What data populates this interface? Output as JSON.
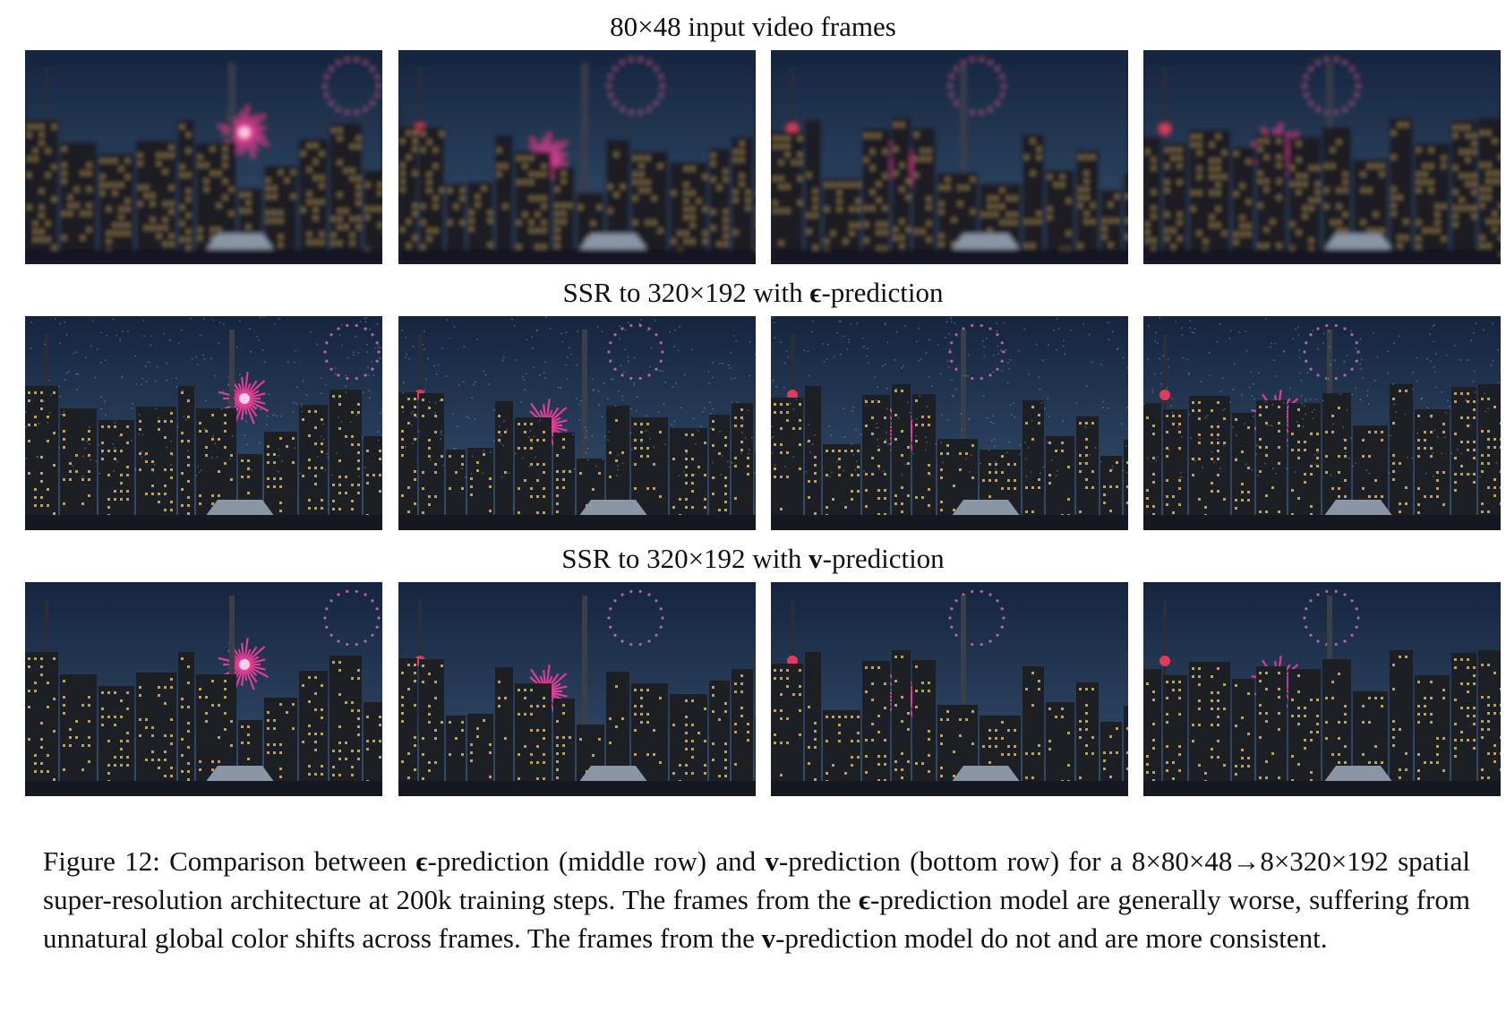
{
  "rows": [
    {
      "title_pre": "80×48 input video frames",
      "symbol": "",
      "title_post": "",
      "quality": "blurry",
      "frames": [
        "frame 1",
        "frame 2",
        "frame 3",
        "frame 4"
      ]
    },
    {
      "title_pre": "SSR to 320×192 with ",
      "symbol": "ϵ",
      "title_post": "-prediction",
      "quality": "noisy",
      "frames": [
        "frame 1",
        "frame 2",
        "frame 3",
        "frame 4"
      ]
    },
    {
      "title_pre": "SSR to 320×192 with ",
      "symbol": "v",
      "title_post": "-prediction",
      "quality": "sharp",
      "frames": [
        "frame 1",
        "frame 2",
        "frame 3",
        "frame 4"
      ]
    }
  ],
  "caption": {
    "p1": "Figure 12: Comparison between ",
    "s1": "ϵ",
    "p2": "-prediction (middle row) and ",
    "s2": "v",
    "p3": "-prediction (bottom row) for a 8×80×48→8×320×192 spatial super-resolution architecture at 200k training steps.  The frames from the ",
    "s3": "ϵ",
    "p4": "-prediction model are generally worse, suffering from unnatural global color shifts across frames. The frames from the ",
    "s4": "v",
    "p5": "-prediction model do not and are more consistent."
  },
  "colors": {
    "sky_top": "#16253f",
    "sky_bottom": "#35506e",
    "firework": "#ff3fa0",
    "buildings": "#1c1f24",
    "window_light": "#e8c070"
  }
}
